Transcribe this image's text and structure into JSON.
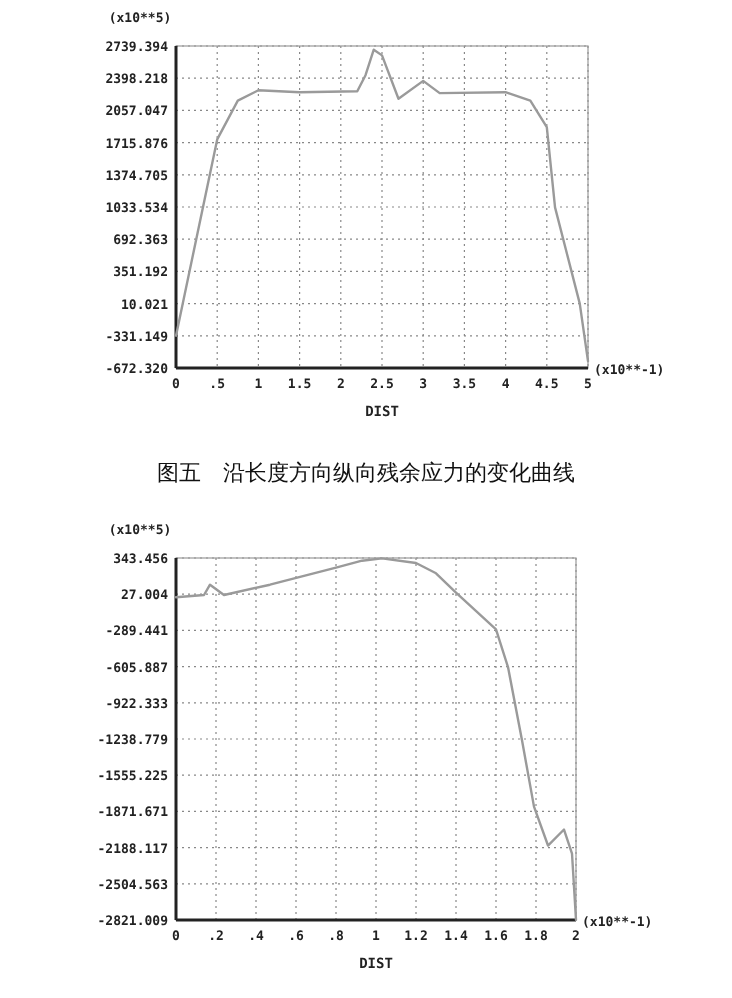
{
  "chart_data": [
    {
      "type": "line",
      "xlabel": "DIST",
      "ylabel": "(x10**5)",
      "annotations": [
        "(x10**-1)",
        "图五　沿长度方向纵向残余应力的变化曲线"
      ],
      "x": [
        0,
        0.5,
        0.75,
        1.0,
        1.5,
        2.2,
        2.3,
        2.4,
        2.5,
        2.7,
        3.0,
        3.2,
        4.0,
        4.3,
        4.5,
        4.6,
        4.9,
        5.0
      ],
      "series": [
        {
          "color": "#9a9a9a",
          "values": [
            -330,
            1750,
            2160,
            2270,
            2250,
            2260,
            2430,
            2700,
            2640,
            2180,
            2370,
            2240,
            2250,
            2160,
            1880,
            1030,
            10,
            -600
          ]
        }
      ],
      "xlim": [
        0,
        5
      ],
      "ylim": [
        -672.32,
        2739.394
      ],
      "xticks": [
        0,
        {
          "value": 0.5,
          "label": ".5"
        },
        1,
        1.5,
        2,
        2.5,
        3,
        3.5,
        4,
        4.5,
        5
      ],
      "yticks": [
        {
          "value": -672.32,
          "label": "-672.320"
        },
        -331.149,
        10.021,
        351.192,
        692.363,
        1033.534,
        1374.705,
        1715.876,
        2057.047,
        2398.218,
        2739.394
      ],
      "grid": true
    },
    {
      "type": "line",
      "xlabel": "DIST",
      "ylabel": "(x10**5)",
      "annotations": [
        "(x10**-1)"
      ],
      "x": [
        0,
        0.14,
        0.17,
        0.24,
        0.47,
        0.8,
        0.93,
        1.03,
        1.2,
        1.3,
        1.4,
        1.6,
        1.66,
        1.73,
        1.79,
        1.86,
        1.94,
        1.98,
        2.0
      ],
      "series": [
        {
          "color": "#9a9a9a",
          "values": [
            0,
            20,
            110,
            20,
            110,
            260,
            320,
            340,
            300,
            210,
            40,
            -280,
            -610,
            -1250,
            -1830,
            -2170,
            -2030,
            -2240,
            -2820
          ]
        }
      ],
      "xlim": [
        0,
        2
      ],
      "ylim": [
        -2821.009,
        343.456
      ],
      "xticks": [
        0,
        {
          "value": 0.2,
          "label": ".2"
        },
        {
          "value": 0.4,
          "label": ".4"
        },
        {
          "value": 0.6,
          "label": ".6"
        },
        {
          "value": 0.8,
          "label": ".8"
        },
        1,
        1.2,
        1.4,
        1.6,
        1.8,
        2
      ],
      "yticks": [
        -2821.009,
        -2504.563,
        -2188.117,
        -1871.671,
        -1555.225,
        -1238.779,
        -922.333,
        -605.887,
        -289.441,
        27.004,
        343.456
      ],
      "grid": true
    }
  ]
}
